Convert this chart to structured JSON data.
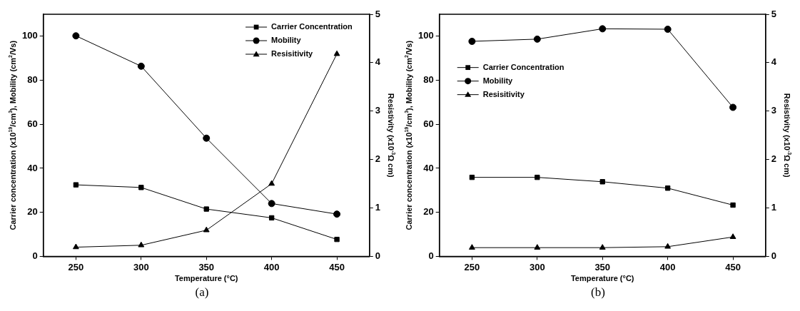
{
  "chart_data": [
    {
      "type": "line",
      "xlabel": "Temperature (°C)",
      "ylabel": "Carrier concentration (x10$^{19}$/cm$^{3}$), Mobility (cm$^{2}$/Vs)",
      "y2label": "Resistivity (x10$^{-3}$Ω cm)",
      "x": [
        250,
        300,
        350,
        400,
        450
      ],
      "xlim": [
        225,
        475
      ],
      "xticks": [
        250,
        300,
        350,
        400,
        450
      ],
      "ylim": [
        0,
        110
      ],
      "yticks": [
        0,
        20,
        40,
        60,
        80,
        100
      ],
      "y2lim": [
        0,
        5
      ],
      "y2ticks": [
        0,
        1,
        2,
        3,
        4,
        5
      ],
      "legend": "top right",
      "line_style": "solid",
      "annotations": [
        "(a)"
      ],
      "series": [
        {
          "name": "Carrier Concentration",
          "color": "#000000",
          "marker": "square",
          "values": [
            32.5,
            31.3,
            21.5,
            17.5,
            7.7
          ]
        },
        {
          "name": "Mobility",
          "color": "#000000",
          "marker": "circle",
          "values": [
            100.2,
            86.4,
            53.7,
            24.0,
            19.2
          ]
        },
        {
          "name": "Resisitivity",
          "color": "#000000",
          "marker": "triangle",
          "axis": "y2",
          "values": [
            0.19,
            0.23,
            0.54,
            1.5,
            4.18
          ]
        }
      ]
    },
    {
      "type": "line",
      "xlabel": "Temperature (°C)",
      "ylabel": "Carrier concentration (x10$^{19}$/cm$^{3}$), Mobility (cm$^{2}$/Vs)",
      "y2label": "Resistivity (x10$^{-3}$Ω cm)",
      "x": [
        250,
        300,
        350,
        400,
        450
      ],
      "xlim": [
        225,
        475
      ],
      "xticks": [
        250,
        300,
        350,
        400,
        450
      ],
      "ylim": [
        0,
        110
      ],
      "yticks": [
        0,
        20,
        40,
        60,
        80,
        100
      ],
      "y2lim": [
        0,
        5
      ],
      "y2ticks": [
        0,
        1,
        2,
        3,
        4,
        5
      ],
      "legend": "top left",
      "line_style": "solid",
      "annotations": [
        "(b)"
      ],
      "series": [
        {
          "name": "Carrier Concentration",
          "color": "#000000",
          "marker": "square",
          "values": [
            35.9,
            35.9,
            33.9,
            31.0,
            23.3
          ]
        },
        {
          "name": "Mobility",
          "color": "#000000",
          "marker": "circle",
          "values": [
            97.7,
            98.7,
            103.4,
            103.2,
            67.7
          ]
        },
        {
          "name": "Resisitivity",
          "color": "#000000",
          "marker": "triangle",
          "axis": "y2",
          "values": [
            0.18,
            0.18,
            0.18,
            0.2,
            0.4
          ]
        }
      ]
    }
  ]
}
